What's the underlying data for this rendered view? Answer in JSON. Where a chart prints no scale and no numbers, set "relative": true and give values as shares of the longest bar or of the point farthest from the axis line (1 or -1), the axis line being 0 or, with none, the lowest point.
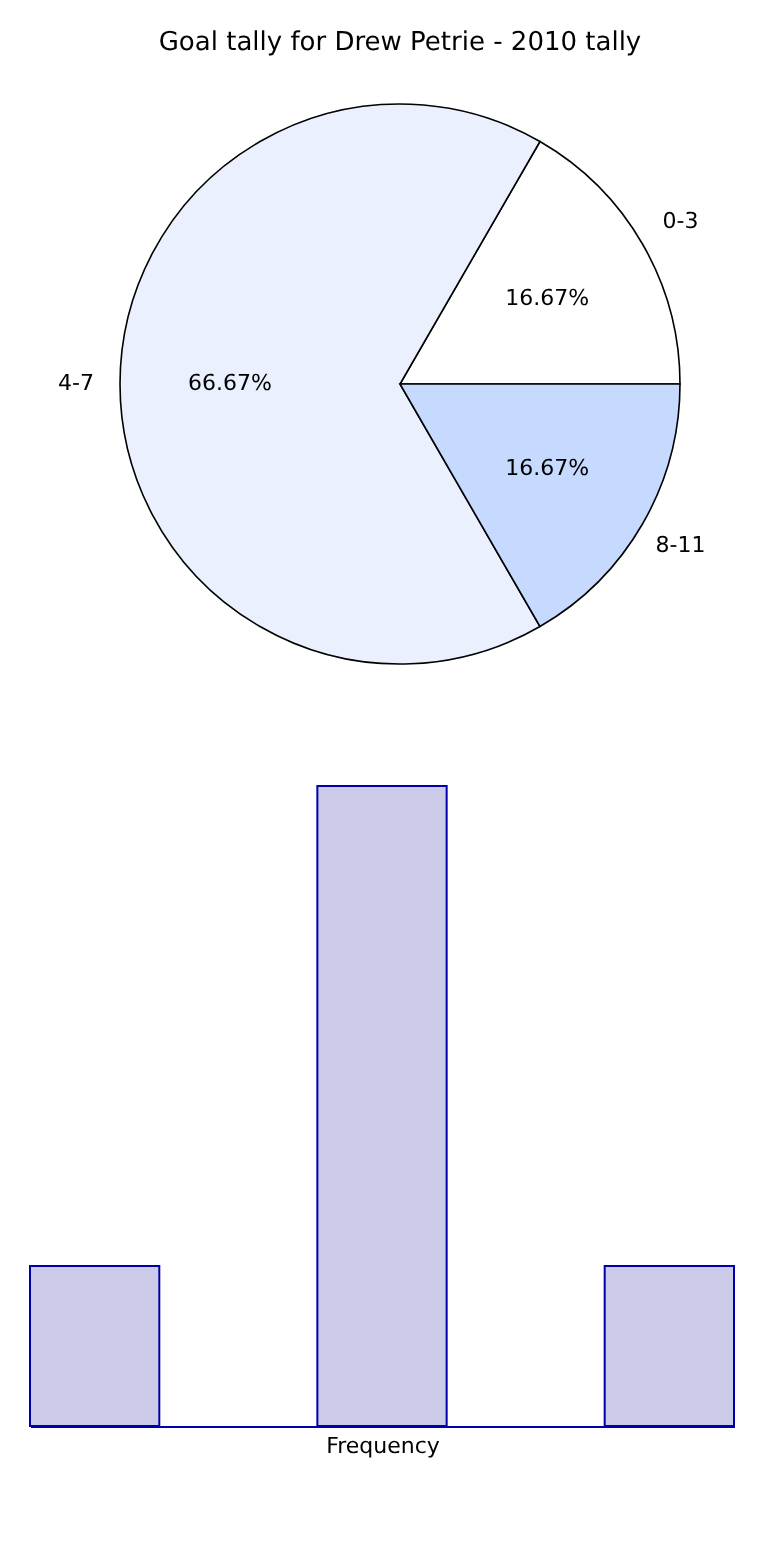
{
  "chart_data": [
    {
      "type": "pie",
      "title": "Goal tally for Drew Petrie - 2010 tally",
      "categories": [
        "0-3",
        "4-7",
        "8-11"
      ],
      "values": [
        16.67,
        66.67,
        16.67
      ],
      "colors": [
        "#ffffff",
        "#eaf0fe",
        "#c6d9fe"
      ],
      "value_labels": [
        "16.67%",
        "66.67%",
        "16.67%"
      ],
      "legend": false
    },
    {
      "type": "bar",
      "relative": true,
      "categories": [
        null,
        null,
        null
      ],
      "values": [
        0.25,
        1,
        0.25
      ],
      "color": "#ccccea",
      "xlabel": "Frequency"
    }
  ]
}
